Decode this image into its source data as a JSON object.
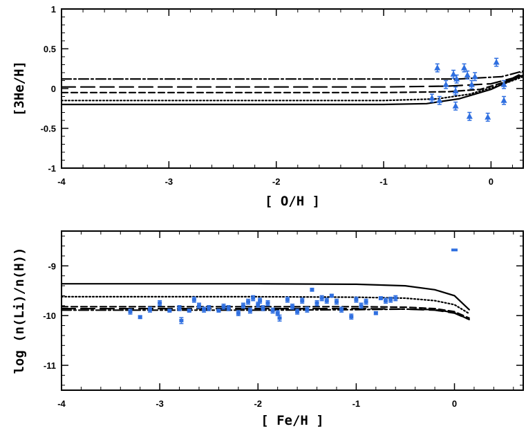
{
  "chart_data": [
    {
      "type": "line",
      "xlabel": "[ O/H ]",
      "ylabel": "[3He/H]",
      "xlim": [
        -4,
        0.3
      ],
      "ylim": [
        -1,
        1
      ],
      "xticks": [
        -4,
        -3,
        -2,
        -1,
        0
      ],
      "yticks": [
        -1,
        -0.5,
        0,
        0.5,
        1
      ],
      "xtick_labels": [
        "-4",
        "-3",
        "-2",
        "-1",
        "0"
      ],
      "ytick_labels": [
        "-1",
        "-0.5",
        "0",
        "0.5",
        "1"
      ],
      "grid": false,
      "colors": {
        "models": "#000000",
        "observations": "#2f6fe0"
      },
      "series": [
        {
          "style": "solid",
          "x": [
            -4,
            -1,
            -0.6,
            -0.3,
            0,
            0.15,
            0.3
          ],
          "y": [
            -0.2,
            -0.2,
            -0.19,
            -0.13,
            -0.01,
            0.08,
            0.17
          ]
        },
        {
          "style": "dotted",
          "x": [
            -4,
            -1,
            -0.5,
            -0.2,
            0.1,
            0.3
          ],
          "y": [
            -0.15,
            -0.15,
            -0.13,
            -0.07,
            0.05,
            0.15
          ]
        },
        {
          "style": "short-dash",
          "x": [
            -4,
            -1,
            -0.4,
            -0.1,
            0.1,
            0.3
          ],
          "y": [
            -0.05,
            -0.05,
            -0.04,
            -0.01,
            0.07,
            0.18
          ]
        },
        {
          "style": "long-dash",
          "x": [
            -4,
            -1,
            -0.4,
            0,
            0.2,
            0.3
          ],
          "y": [
            0.02,
            0.02,
            0.03,
            0.06,
            0.13,
            0.2
          ]
        },
        {
          "style": "dash-dot",
          "x": [
            -4,
            -1,
            -0.3,
            0.1,
            0.3
          ],
          "y": [
            0.12,
            0.12,
            0.12,
            0.15,
            0.22
          ]
        }
      ],
      "observations": {
        "marker": "triangle",
        "x": [
          -0.55,
          -0.5,
          -0.48,
          -0.42,
          -0.35,
          -0.33,
          -0.33,
          -0.32,
          -0.25,
          -0.22,
          -0.2,
          -0.18,
          -0.15,
          -0.03,
          0.05,
          0.12,
          0.12
        ],
        "y": [
          -0.12,
          0.26,
          -0.15,
          0.05,
          0.18,
          -0.03,
          -0.22,
          0.12,
          0.26,
          0.17,
          -0.35,
          0.05,
          0.15,
          -0.36,
          0.33,
          -0.15,
          0.05
        ],
        "err": [
          0.05,
          0.05,
          0.05,
          0.05,
          0.05,
          0.05,
          0.05,
          0.05,
          0.05,
          0.05,
          0.05,
          0.05,
          0.05,
          0.05,
          0.05,
          0.05,
          0.05
        ]
      }
    },
    {
      "type": "line",
      "xlabel": "[ Fe/H ]",
      "ylabel": "log (n(Li)/n(H))",
      "xlim": [
        -4,
        0.7
      ],
      "ylim": [
        -11.5,
        -8.3
      ],
      "xticks": [
        -4,
        -3,
        -2,
        -1,
        0
      ],
      "yticks": [
        -11,
        -10,
        -9
      ],
      "xtick_labels": [
        "-4",
        "-3",
        "-2",
        "-1",
        "0"
      ],
      "ytick_labels": [
        "-11",
        "-10",
        "-9"
      ],
      "grid": false,
      "colors": {
        "models": "#000000",
        "observations": "#2f6fe0"
      },
      "series": [
        {
          "style": "solid",
          "x": [
            -4,
            -2,
            -1,
            -0.5,
            -0.2,
            0,
            0.15
          ],
          "y": [
            -9.36,
            -9.36,
            -9.37,
            -9.4,
            -9.48,
            -9.6,
            -9.88
          ]
        },
        {
          "style": "dotted",
          "x": [
            -4,
            -2,
            -1,
            -0.5,
            -0.2,
            0,
            0.15
          ],
          "y": [
            -9.62,
            -9.62,
            -9.63,
            -9.65,
            -9.7,
            -9.78,
            -9.96
          ]
        },
        {
          "style": "short-dash",
          "x": [
            -4,
            -2,
            -1,
            -0.5,
            -0.2,
            0,
            0.15
          ],
          "y": [
            -9.82,
            -9.82,
            -9.82,
            -9.83,
            -9.86,
            -9.92,
            -10.05
          ]
        },
        {
          "style": "long-dash",
          "x": [
            -4,
            -2,
            -1,
            -0.5,
            -0.2,
            0,
            0.15
          ],
          "y": [
            -9.86,
            -9.86,
            -9.86,
            -9.87,
            -9.89,
            -9.95,
            -10.08
          ]
        },
        {
          "style": "dash-dot",
          "x": [
            -4,
            -2,
            -1,
            -0.5,
            -0.2,
            0,
            0.15
          ],
          "y": [
            -9.89,
            -9.89,
            -9.88,
            -9.87,
            -9.88,
            -9.94,
            -10.08
          ]
        }
      ],
      "observations": {
        "marker": "square",
        "x": [
          -3.3,
          -3.2,
          -3.1,
          -3.0,
          -2.9,
          -2.8,
          -2.78,
          -2.7,
          -2.65,
          -2.6,
          -2.55,
          -2.5,
          -2.4,
          -2.35,
          -2.3,
          -2.2,
          -2.15,
          -2.1,
          -2.08,
          -2.05,
          -2.0,
          -1.98,
          -1.95,
          -1.9,
          -1.85,
          -1.8,
          -1.78,
          -1.7,
          -1.65,
          -1.6,
          -1.55,
          -1.5,
          -1.45,
          -1.4,
          -1.35,
          -1.3,
          -1.25,
          -1.2,
          -1.15,
          -1.05,
          -1.0,
          -0.95,
          -0.9,
          -0.8,
          -0.75,
          -0.7,
          -0.65,
          -0.6,
          0.0
        ],
        "y": [
          -9.92,
          -10.03,
          -9.88,
          -9.75,
          -9.9,
          -9.85,
          -10.1,
          -9.9,
          -9.68,
          -9.8,
          -9.88,
          -9.85,
          -9.9,
          -9.82,
          -9.85,
          -9.95,
          -9.8,
          -9.72,
          -9.9,
          -9.65,
          -9.78,
          -9.7,
          -9.85,
          -9.75,
          -9.9,
          -9.95,
          -10.05,
          -9.68,
          -9.82,
          -9.92,
          -9.7,
          -9.88,
          -9.48,
          -9.75,
          -9.65,
          -9.7,
          -9.6,
          -9.72,
          -9.88,
          -10.02,
          -9.68,
          -9.8,
          -9.72,
          -9.95,
          -9.65,
          -9.7,
          -9.68,
          -9.65,
          -8.68
        ],
        "err": [
          0.05,
          0.03,
          0.05,
          0.05,
          0.03,
          0.05,
          0.06,
          0.03,
          0.05,
          0.05,
          0.05,
          0.05,
          0.03,
          0.05,
          0.05,
          0.05,
          0.05,
          0.05,
          0.05,
          0.05,
          0.05,
          0.05,
          0.05,
          0.05,
          0.05,
          0.05,
          0.06,
          0.05,
          0.05,
          0.05,
          0.05,
          0.05,
          0.03,
          0.05,
          0.05,
          0.05,
          0.03,
          0.05,
          0.05,
          0.05,
          0.05,
          0.05,
          0.05,
          0.03,
          0.03,
          0.05,
          0.05,
          0.05,
          0.0
        ]
      }
    }
  ]
}
